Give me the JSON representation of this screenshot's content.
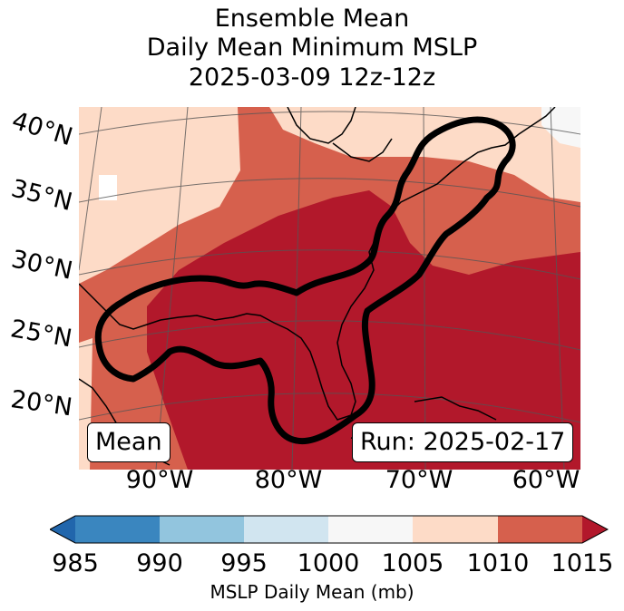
{
  "title": {
    "line1": "Ensemble Mean",
    "line2": "Daily Mean Minimum MSLP",
    "line3": "2025-03-09 12z-12z"
  },
  "map": {
    "lat_labels": [
      "40°N",
      "35°N",
      "30°N",
      "25°N",
      "20°N"
    ],
    "lon_labels": [
      "90°W",
      "80°W",
      "70°W",
      "60°W"
    ],
    "mean_label": "Mean",
    "run_label": "Run: 2025-02-17"
  },
  "colorbar": {
    "ticks": [
      "985",
      "990",
      "995",
      "1000",
      "1005",
      "1010",
      "1015"
    ],
    "label": "MSLP Daily Mean (mb)",
    "colors": [
      "#3a86bf",
      "#92c5de",
      "#d1e5f0",
      "#f7f7f7",
      "#fddbc7",
      "#d6604d",
      "#b2182b",
      "#2166ac"
    ]
  }
}
